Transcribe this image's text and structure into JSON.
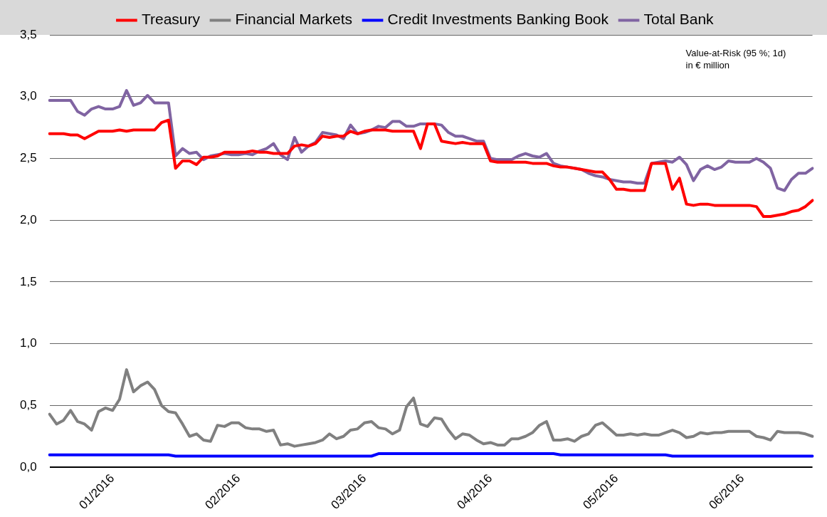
{
  "chart_data": {
    "type": "line",
    "categories": [
      null,
      null,
      null,
      null,
      null,
      null,
      null,
      null,
      null,
      "01/2016",
      null,
      null,
      null,
      null,
      null,
      null,
      null,
      null,
      null,
      null,
      null,
      null,
      null,
      null,
      null,
      null,
      null,
      "02/2016",
      null,
      null,
      null,
      null,
      null,
      null,
      null,
      null,
      null,
      null,
      null,
      null,
      null,
      null,
      null,
      null,
      null,
      "03/2016",
      null,
      null,
      null,
      null,
      null,
      null,
      null,
      null,
      null,
      null,
      null,
      null,
      null,
      null,
      null,
      null,
      null,
      "04/2016",
      null,
      null,
      null,
      null,
      null,
      null,
      null,
      null,
      null,
      null,
      null,
      null,
      null,
      null,
      null,
      null,
      null,
      "05/2016",
      null,
      null,
      null,
      null,
      null,
      null,
      null,
      null,
      null,
      null,
      null,
      null,
      null,
      null,
      null,
      null,
      null,
      "06/2016",
      null,
      null,
      null,
      null,
      null,
      null,
      null,
      null,
      null,
      null
    ],
    "series": [
      {
        "name": "Treasury",
        "color": "#ff0000",
        "values": [
          2.7,
          2.7,
          2.7,
          2.69,
          2.69,
          2.66,
          2.69,
          2.72,
          2.72,
          2.72,
          2.73,
          2.72,
          2.73,
          2.73,
          2.73,
          2.73,
          2.79,
          2.81,
          2.42,
          2.48,
          2.48,
          2.45,
          2.51,
          2.51,
          2.52,
          2.55,
          2.55,
          2.55,
          2.55,
          2.56,
          2.55,
          2.55,
          2.54,
          2.54,
          2.54,
          2.6,
          2.61,
          2.6,
          2.62,
          2.68,
          2.67,
          2.68,
          2.68,
          2.72,
          2.7,
          2.72,
          2.73,
          2.73,
          2.73,
          2.72,
          2.72,
          2.72,
          2.72,
          2.58,
          2.78,
          2.78,
          2.64,
          2.63,
          2.62,
          2.63,
          2.62,
          2.62,
          2.62,
          2.48,
          2.47,
          2.47,
          2.47,
          2.47,
          2.47,
          2.46,
          2.46,
          2.46,
          2.44,
          2.43,
          2.43,
          2.42,
          2.41,
          2.4,
          2.39,
          2.39,
          2.33,
          2.25,
          2.25,
          2.24,
          2.24,
          2.24,
          2.46,
          2.46,
          2.46,
          2.25,
          2.34,
          2.13,
          2.12,
          2.13,
          2.13,
          2.12,
          2.12,
          2.12,
          2.12,
          2.12,
          2.12,
          2.11,
          2.03,
          2.03,
          2.04,
          2.05,
          2.07,
          2.08,
          2.11,
          2.16
        ]
      },
      {
        "name": "Financial Markets",
        "color": "#808080",
        "values": [
          0.43,
          0.35,
          0.38,
          0.46,
          0.37,
          0.35,
          0.3,
          0.45,
          0.48,
          0.46,
          0.55,
          0.79,
          0.61,
          0.66,
          0.69,
          0.63,
          0.5,
          0.45,
          0.44,
          0.35,
          0.25,
          0.27,
          0.22,
          0.21,
          0.34,
          0.33,
          0.36,
          0.36,
          0.32,
          0.31,
          0.31,
          0.29,
          0.3,
          0.18,
          0.19,
          0.17,
          0.18,
          0.19,
          0.2,
          0.22,
          0.27,
          0.23,
          0.25,
          0.3,
          0.31,
          0.36,
          0.37,
          0.32,
          0.31,
          0.27,
          0.3,
          0.49,
          0.56,
          0.35,
          0.33,
          0.4,
          0.39,
          0.3,
          0.23,
          0.27,
          0.26,
          0.22,
          0.19,
          0.2,
          0.18,
          0.18,
          0.23,
          0.23,
          0.25,
          0.28,
          0.34,
          0.37,
          0.22,
          0.22,
          0.23,
          0.21,
          0.25,
          0.27,
          0.34,
          0.36,
          0.31,
          0.26,
          0.26,
          0.27,
          0.26,
          0.27,
          0.26,
          0.26,
          0.28,
          0.3,
          0.28,
          0.24,
          0.25,
          0.28,
          0.27,
          0.28,
          0.28,
          0.29,
          0.29,
          0.29,
          0.29,
          0.25,
          0.24,
          0.22,
          0.29,
          0.28,
          0.28,
          0.28,
          0.27,
          0.25
        ]
      },
      {
        "name": "Credit Investments Banking Book",
        "color": "#0000ff",
        "values": [
          0.1,
          0.1,
          0.1,
          0.1,
          0.1,
          0.1,
          0.1,
          0.1,
          0.1,
          0.1,
          0.1,
          0.1,
          0.1,
          0.1,
          0.1,
          0.1,
          0.1,
          0.1,
          0.09,
          0.09,
          0.09,
          0.09,
          0.09,
          0.09,
          0.09,
          0.09,
          0.09,
          0.09,
          0.09,
          0.09,
          0.09,
          0.09,
          0.09,
          0.09,
          0.09,
          0.09,
          0.09,
          0.09,
          0.09,
          0.09,
          0.09,
          0.09,
          0.09,
          0.09,
          0.09,
          0.09,
          0.09,
          0.11,
          0.11,
          0.11,
          0.11,
          0.11,
          0.11,
          0.11,
          0.11,
          0.11,
          0.11,
          0.11,
          0.11,
          0.11,
          0.11,
          0.11,
          0.11,
          0.11,
          0.11,
          0.11,
          0.11,
          0.11,
          0.11,
          0.11,
          0.11,
          0.11,
          0.11,
          0.1,
          0.1,
          0.1,
          0.1,
          0.1,
          0.1,
          0.1,
          0.1,
          0.1,
          0.1,
          0.1,
          0.1,
          0.1,
          0.1,
          0.1,
          0.1,
          0.09,
          0.09,
          0.09,
          0.09,
          0.09,
          0.09,
          0.09,
          0.09,
          0.09,
          0.09,
          0.09,
          0.09,
          0.09,
          0.09,
          0.09,
          0.09,
          0.09,
          0.09,
          0.09,
          0.09,
          0.09
        ]
      },
      {
        "name": "Total Bank",
        "color": "#8064a2",
        "values": [
          2.97,
          2.97,
          2.97,
          2.97,
          2.88,
          2.85,
          2.9,
          2.92,
          2.9,
          2.9,
          2.92,
          3.05,
          2.93,
          2.95,
          3.01,
          2.95,
          2.95,
          2.95,
          2.52,
          2.58,
          2.54,
          2.55,
          2.49,
          2.52,
          2.53,
          2.54,
          2.53,
          2.53,
          2.54,
          2.53,
          2.56,
          2.58,
          2.62,
          2.53,
          2.49,
          2.67,
          2.55,
          2.6,
          2.63,
          2.71,
          2.7,
          2.69,
          2.66,
          2.77,
          2.7,
          2.71,
          2.73,
          2.76,
          2.75,
          2.8,
          2.8,
          2.76,
          2.76,
          2.78,
          2.78,
          2.78,
          2.77,
          2.71,
          2.68,
          2.68,
          2.66,
          2.64,
          2.64,
          2.5,
          2.49,
          2.49,
          2.49,
          2.52,
          2.54,
          2.52,
          2.51,
          2.54,
          2.46,
          2.44,
          2.43,
          2.42,
          2.41,
          2.38,
          2.36,
          2.35,
          2.33,
          2.32,
          2.31,
          2.31,
          2.3,
          2.3,
          2.46,
          2.47,
          2.48,
          2.47,
          2.51,
          2.45,
          2.32,
          2.41,
          2.44,
          2.41,
          2.43,
          2.48,
          2.47,
          2.47,
          2.47,
          2.5,
          2.47,
          2.42,
          2.26,
          2.24,
          2.33,
          2.38,
          2.38,
          2.42
        ]
      }
    ],
    "ylim": [
      0,
      3.5
    ],
    "yticks": [
      {
        "value": 0,
        "label": "0,0"
      },
      {
        "value": 0.5,
        "label": "0,5"
      },
      {
        "value": 1,
        "label": "1,0"
      },
      {
        "value": 1.5,
        "label": "1,5"
      },
      {
        "value": 2,
        "label": "2,0"
      },
      {
        "value": 2.5,
        "label": "2,5"
      },
      {
        "value": 3,
        "label": "3,0"
      },
      {
        "value": 3.5,
        "label": "3,5"
      }
    ],
    "grid": "y",
    "legend": "top",
    "marker": "none",
    "line_style": "solid",
    "annotations": [
      "Value-at-Risk (95 %; 1d)",
      "in € million"
    ]
  }
}
